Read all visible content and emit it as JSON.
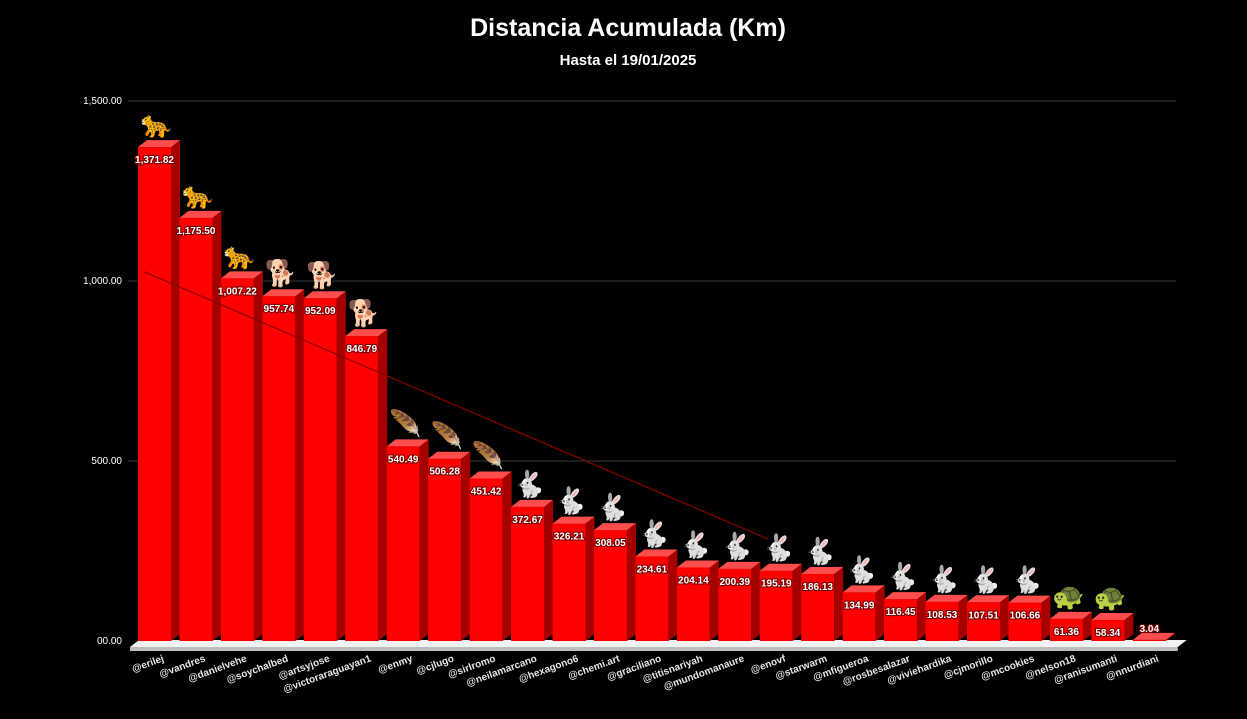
{
  "chart_data": {
    "type": "bar",
    "title": "Distancia Acumulada (Km)",
    "subtitle": "Hasta el 19/01/2025",
    "ylim": [
      0,
      1500
    ],
    "y_ticks": [
      "00.00",
      "500.00",
      "1,000.00",
      "1,500.00"
    ],
    "y_tick_values": [
      0,
      500,
      1000,
      1500
    ],
    "grid": true,
    "categories": [
      "@erilej",
      "@vandres",
      "@danielvehe",
      "@soychalbed",
      "@artsyjose",
      "@victoraraguayan1",
      "@enmy",
      "@cjlugo",
      "@sirlromo",
      "@neilamarcano",
      "@hexagono6",
      "@chemi.art",
      "@graciliano",
      "@titisnariyah",
      "@mundomanaure",
      "@enovf",
      "@starwarm",
      "@mfigueroa",
      "@rosbesalazar",
      "@viviehardika",
      "@cjmorillo",
      "@mcookies",
      "@nelson18",
      "@ranisumanti",
      "@nnurdiani"
    ],
    "values": [
      1371.82,
      1175.5,
      1007.22,
      957.74,
      952.09,
      846.79,
      540.49,
      506.28,
      451.42,
      372.67,
      326.21,
      308.05,
      234.61,
      204.14,
      200.39,
      195.19,
      186.13,
      134.99,
      116.45,
      108.53,
      107.51,
      106.66,
      61.36,
      58.34,
      3.04
    ],
    "value_labels": [
      "1,371.82",
      "1,175.50",
      "1,007.22",
      "957.74",
      "952.09",
      "846.79",
      "540.49",
      "506.28",
      "451.42",
      "372.67",
      "326.21",
      "308.05",
      "234.61",
      "204.14",
      "200.39",
      "195.19",
      "186.13",
      "134.99",
      "116.45",
      "108.53",
      "107.51",
      "106.66",
      "61.36",
      "58.34",
      "3.04"
    ],
    "icons": [
      "leopard-icon",
      "leopard-icon",
      "leopard-icon",
      "dog-icon",
      "dog-icon",
      "dog-icon",
      "feather-icon",
      "feather-icon",
      "feather-icon",
      "rabbit-icon",
      "rabbit-icon",
      "rabbit-icon",
      "rabbit-icon",
      "rabbit-icon",
      "rabbit-icon",
      "rabbit-icon",
      "rabbit-icon",
      "rabbit-icon",
      "rabbit-icon",
      "rabbit-icon",
      "rabbit-icon",
      "rabbit-icon",
      "turtle-icon",
      "turtle-icon",
      ""
    ],
    "bar_color": "#ff0000",
    "trendline": true,
    "trendline_color": "#8b0000"
  }
}
